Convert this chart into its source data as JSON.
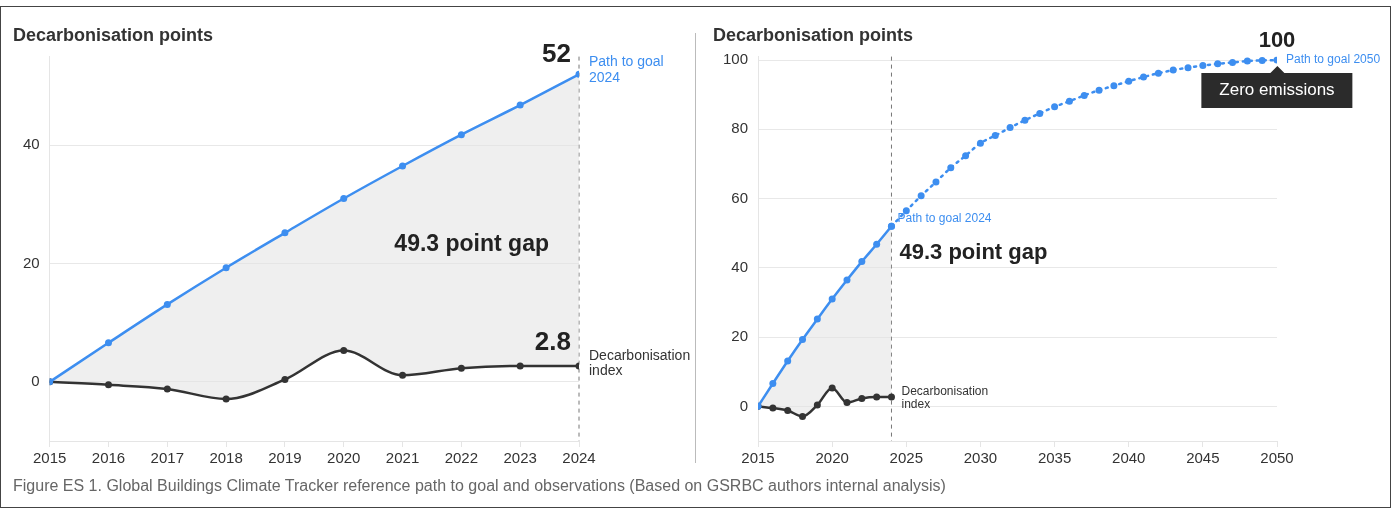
{
  "chart_data": [
    {
      "type": "line",
      "title": "Decarbonisation points",
      "x": [
        2015,
        2016,
        2017,
        2018,
        2019,
        2020,
        2021,
        2022,
        2023,
        2024
      ],
      "series": [
        {
          "color": "#3d8ef0",
          "values": [
            0,
            6.6,
            13.1,
            19.3,
            25.2,
            31.0,
            36.5,
            41.8,
            46.8,
            52
          ],
          "lower": [
            0,
            -0.5,
            -1.2,
            -2.9,
            0.4,
            5.3,
            1.1,
            2.3,
            2.7,
            2.7
          ],
          "upper": [
            0,
            6.6,
            13.1,
            19.3,
            25.2,
            31.0,
            36.5,
            41.8,
            46.8,
            52
          ]
        },
        {
          "color": "#333333",
          "values": [
            0,
            -0.5,
            -1.2,
            -2.9,
            0.4,
            5.3,
            1.1,
            2.3,
            2.7,
            2.7
          ]
        }
      ],
      "xlim": [
        2015,
        2024
      ],
      "xticks": [
        2015,
        2016,
        2017,
        2018,
        2019,
        2020,
        2021,
        2022,
        2023,
        2024
      ],
      "ylim": [
        -10,
        55
      ],
      "yticks": [
        0,
        20,
        40
      ],
      "grid": "y",
      "marker": "circle",
      "line_style": "solid",
      "legend": false,
      "ref_lines": [
        {
          "axis": "x",
          "value": 2024,
          "color": "#777777",
          "line_style": "dashed"
        }
      ],
      "annotations": [
        "52",
        "Path to goal 2024",
        "2.8",
        "Decarbonisation index",
        "49.3 point gap",
        "Figure ES 1. Global Buildings Climate Tracker reference path to goal and observations (Based on GSRBC authors internal analysis)"
      ]
    },
    {
      "type": "line",
      "title": "Decarbonisation points",
      "series": [
        {
          "color": "#3d8ef0",
          "x": [
            2015,
            2016,
            2017,
            2018,
            2019,
            2020,
            2021,
            2022,
            2023,
            2024
          ],
          "values": [
            0,
            6.6,
            13.1,
            19.3,
            25.2,
            31.0,
            36.5,
            41.8,
            46.8,
            52
          ],
          "lower": [
            0,
            -0.5,
            -1.2,
            -2.9,
            0.4,
            5.3,
            1.1,
            2.3,
            2.7,
            2.7
          ],
          "upper": [
            0,
            6.6,
            13.1,
            19.3,
            25.2,
            31.0,
            36.5,
            41.8,
            46.8,
            52
          ]
        },
        {
          "color": "#3d8ef0",
          "line_style": "dotted",
          "x": [
            2024,
            2025,
            2026,
            2027,
            2028,
            2029,
            2030,
            2031,
            2032,
            2033,
            2034,
            2035,
            2036,
            2037,
            2038,
            2039,
            2040,
            2041,
            2042,
            2043,
            2044,
            2045,
            2046,
            2047,
            2048,
            2049,
            2050
          ],
          "values": [
            52,
            56.5,
            60.8,
            64.8,
            68.9,
            72.4,
            76.0,
            78.2,
            80.5,
            82.6,
            84.6,
            86.5,
            88.1,
            89.8,
            91.3,
            92.6,
            93.9,
            95.1,
            96.2,
            97.1,
            97.8,
            98.4,
            98.9,
            99.3,
            99.7,
            99.9,
            100
          ]
        },
        {
          "color": "#333333",
          "x": [
            2015,
            2016,
            2017,
            2018,
            2019,
            2020,
            2021,
            2022,
            2023,
            2024
          ],
          "values": [
            0,
            -0.5,
            -1.2,
            -2.9,
            0.4,
            5.3,
            1.1,
            2.3,
            2.7,
            2.7
          ]
        }
      ],
      "xlim": [
        2015,
        2050
      ],
      "xticks": [
        2015,
        2020,
        2025,
        2030,
        2035,
        2040,
        2045,
        2050
      ],
      "ylim": [
        -10,
        101
      ],
      "yticks": [
        0,
        20,
        40,
        60,
        80,
        100
      ],
      "grid": "y",
      "marker": "circle",
      "line_style": "solid",
      "legend": false,
      "ref_lines": [
        {
          "axis": "x",
          "value": 2024,
          "color": "#777777",
          "line_style": "dashed"
        }
      ],
      "annotations": [
        "100",
        "Path to goal 2050",
        "Zero emissions",
        "Path to goal 2024",
        "49.3 point gap",
        "Decarbonisation index"
      ]
    }
  ]
}
